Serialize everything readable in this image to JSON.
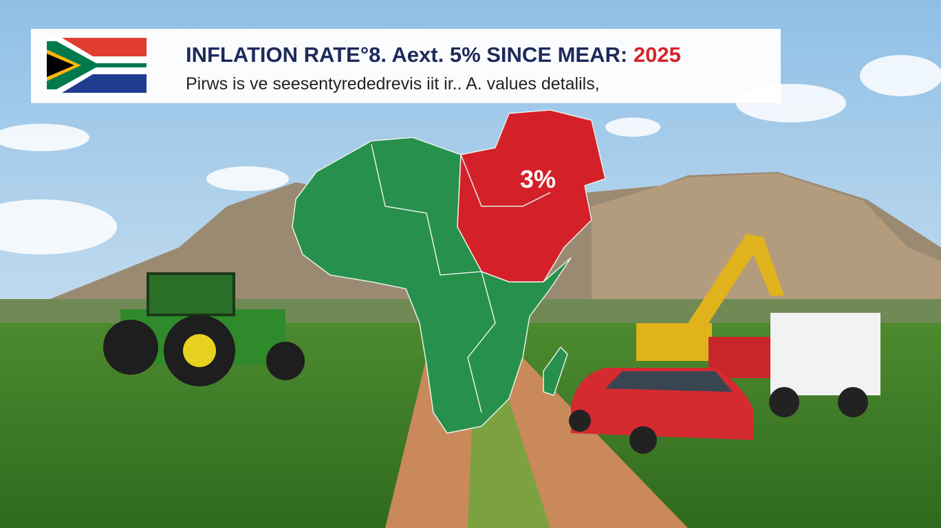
{
  "header": {
    "title": "INFLATION RATE°8. Aext. 5% SINCE MEAR:",
    "year": "2025",
    "subtitle": "Pirws is ve seesentyrededrevis iit ir.. A. values detalils,"
  },
  "map": {
    "label": "3%"
  }
}
